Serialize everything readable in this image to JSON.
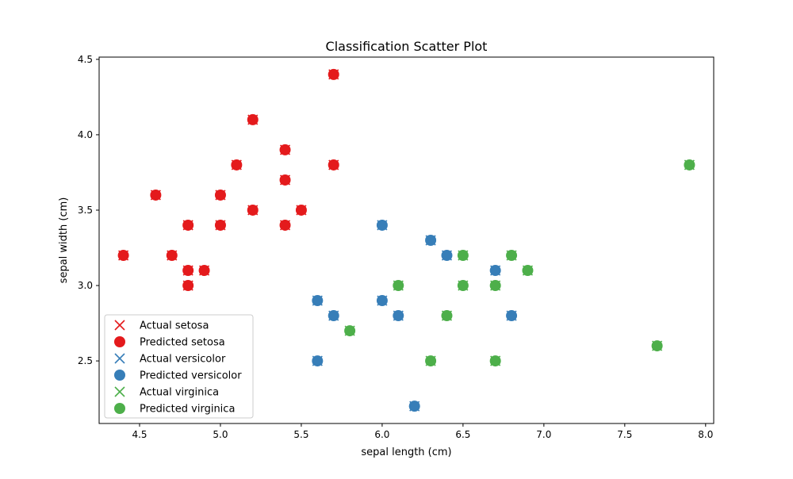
{
  "chart_data": {
    "type": "scatter",
    "title": "Classification Scatter Plot",
    "xlabel": "sepal length (cm)",
    "ylabel": "sepal width (cm)",
    "xlim": [
      4.25,
      8.05
    ],
    "ylim": [
      2.085,
      4.515
    ],
    "x_ticks": [
      "4.5",
      "5.0",
      "5.5",
      "6.0",
      "6.5",
      "7.0",
      "7.5",
      "8.0"
    ],
    "y_ticks": [
      "2.5",
      "3.0",
      "3.5",
      "4.0",
      "4.5"
    ],
    "grid": false,
    "legend_position": "lower-left",
    "legend": [
      {
        "label": "Actual setosa",
        "marker": "x",
        "color": "#e41a1c"
      },
      {
        "label": "Predicted setosa",
        "marker": "o",
        "color": "#e41a1c"
      },
      {
        "label": "Actual versicolor",
        "marker": "x",
        "color": "#377eb8"
      },
      {
        "label": "Predicted versicolor",
        "marker": "o",
        "color": "#377eb8"
      },
      {
        "label": "Actual virginica",
        "marker": "x",
        "color": "#4daf4a"
      },
      {
        "label": "Predicted virginica",
        "marker": "o",
        "color": "#4daf4a"
      }
    ],
    "classes": [
      {
        "class": "setosa",
        "color": "#e41a1c",
        "points": [
          [
            5.7,
            4.4
          ],
          [
            5.2,
            4.1
          ],
          [
            5.4,
            3.9
          ],
          [
            5.1,
            3.8
          ],
          [
            5.7,
            3.8
          ],
          [
            5.4,
            3.7
          ],
          [
            4.6,
            3.6
          ],
          [
            5.0,
            3.6
          ],
          [
            5.2,
            3.5
          ],
          [
            5.5,
            3.5
          ],
          [
            4.8,
            3.4
          ],
          [
            5.0,
            3.4
          ],
          [
            5.4,
            3.4
          ],
          [
            4.4,
            3.2
          ],
          [
            4.7,
            3.2
          ],
          [
            4.8,
            3.1
          ],
          [
            4.9,
            3.1
          ],
          [
            4.8,
            3.0
          ]
        ]
      },
      {
        "class": "versicolor",
        "color": "#377eb8",
        "points": [
          [
            6.0,
            3.4
          ],
          [
            6.3,
            3.3
          ],
          [
            6.4,
            3.2
          ],
          [
            6.7,
            3.1
          ],
          [
            5.6,
            2.9
          ],
          [
            6.0,
            2.9
          ],
          [
            5.7,
            2.8
          ],
          [
            6.1,
            2.8
          ],
          [
            6.8,
            2.8
          ],
          [
            5.6,
            2.5
          ],
          [
            6.2,
            2.2
          ]
        ]
      },
      {
        "class": "virginica",
        "color": "#4daf4a",
        "points": [
          [
            7.9,
            3.8
          ],
          [
            6.5,
            3.2
          ],
          [
            6.8,
            3.2
          ],
          [
            6.9,
            3.1
          ],
          [
            6.1,
            3.0
          ],
          [
            6.5,
            3.0
          ],
          [
            6.7,
            3.0
          ],
          [
            6.4,
            2.8
          ],
          [
            5.8,
            2.7
          ],
          [
            7.7,
            2.6
          ],
          [
            6.3,
            2.5
          ],
          [
            6.7,
            2.5
          ]
        ]
      }
    ]
  }
}
